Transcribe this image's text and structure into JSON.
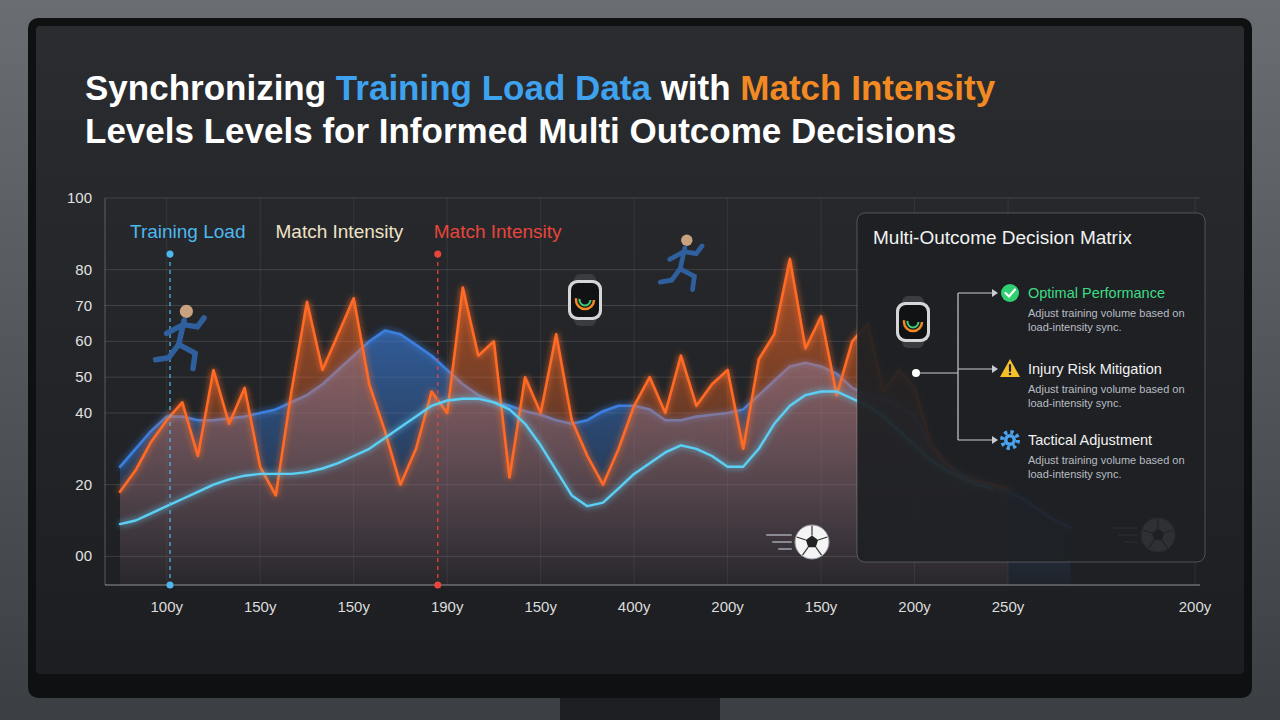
{
  "chart_data": {
    "type": "line",
    "title": [
      [
        "Synchronizing ",
        "Training Load Data",
        " with ",
        "Match Intensity"
      ],
      [
        "Levels Levels for Informed Multi Outcome Decisions"
      ]
    ],
    "categories": [
      null,
      null,
      null,
      "100y",
      null,
      null,
      null,
      null,
      null,
      "150y",
      null,
      null,
      null,
      null,
      null,
      "150y",
      null,
      null,
      null,
      null,
      null,
      "190y",
      null,
      null,
      null,
      null,
      null,
      "150y",
      null,
      null,
      null,
      null,
      null,
      "400y",
      null,
      null,
      null,
      null,
      null,
      "200y",
      null,
      null,
      null,
      null,
      null,
      "150y",
      null,
      null,
      null,
      null,
      null,
      "200y",
      null,
      null,
      null,
      null,
      null,
      "250y",
      null,
      null,
      null,
      null,
      null,
      null,
      null,
      null,
      null,
      null,
      null,
      "200y"
    ],
    "series": [
      {
        "name": "Training Load",
        "type": "line",
        "color": "#5ccff5",
        "values": [
          9,
          10,
          12,
          14,
          16,
          18,
          20,
          21.5,
          22.5,
          23,
          23,
          23,
          23.5,
          24.5,
          26,
          28,
          30,
          33,
          36,
          39,
          42,
          43.5,
          44,
          44,
          43,
          41,
          37,
          31,
          24,
          17,
          14,
          15,
          19,
          23,
          26,
          29,
          31,
          30,
          28,
          25,
          25,
          30,
          37,
          42,
          45,
          46,
          46,
          44,
          42,
          39,
          35,
          31,
          27,
          24,
          22,
          20,
          19,
          null,
          null,
          null,
          null,
          null,
          null,
          null,
          null,
          null,
          null,
          null,
          null,
          null
        ]
      },
      {
        "name": "Match Intensity",
        "type": "area",
        "color": "#3a7fe0",
        "values": [
          25,
          30,
          35,
          39,
          39,
          38,
          38,
          38.5,
          39,
          40,
          41,
          43,
          45,
          48,
          52,
          56,
          60,
          63,
          62,
          59,
          56,
          52,
          48,
          45,
          43,
          42,
          40.5,
          39.5,
          38,
          37,
          38,
          40.5,
          42,
          42,
          41,
          38,
          38,
          39,
          39.5,
          40,
          41,
          45,
          49,
          53,
          54,
          53,
          51,
          47,
          45,
          44,
          42,
          39.5,
          31,
          26,
          23,
          21,
          20,
          18,
          16,
          13,
          10,
          8,
          null,
          null,
          null,
          null,
          null,
          null,
          null,
          null
        ]
      },
      {
        "name": "Match Intensity",
        "type": "area",
        "color": "#ff6a25",
        "values": [
          18,
          24,
          32,
          38,
          43,
          28,
          52,
          37,
          47,
          25,
          17,
          46,
          71,
          52,
          62,
          72,
          48,
          35,
          20,
          30,
          46,
          40,
          75,
          56,
          60,
          22,
          50,
          40,
          62,
          38,
          28,
          20,
          30,
          42,
          50,
          40,
          56,
          42,
          48,
          52,
          30,
          55,
          62,
          83,
          58,
          67,
          45,
          60,
          65,
          46,
          52,
          47,
          32,
          26,
          22,
          21,
          20,
          19,
          null,
          null,
          null,
          null,
          null,
          null,
          null,
          null,
          null,
          null,
          null,
          null
        ]
      }
    ],
    "ylim": [
      -8,
      100
    ],
    "yticks": [
      {
        "value": 0,
        "label": "00"
      },
      20,
      40,
      50,
      60,
      70,
      80,
      100
    ],
    "grid": true,
    "legend": "top-left",
    "panel": {
      "title": "Multi-Outcome Decision Matrix",
      "items": [
        {
          "label": "Optimal Performance",
          "description": "Adjust training volume based on load-intensity sync."
        },
        {
          "label": "Injury Risk Mitigation",
          "description": "Adjust training volume based on load-intensity sync."
        },
        {
          "label": "Tactical Adjustment",
          "description": "Adjust training volume based on load-intensity sync."
        }
      ]
    }
  }
}
